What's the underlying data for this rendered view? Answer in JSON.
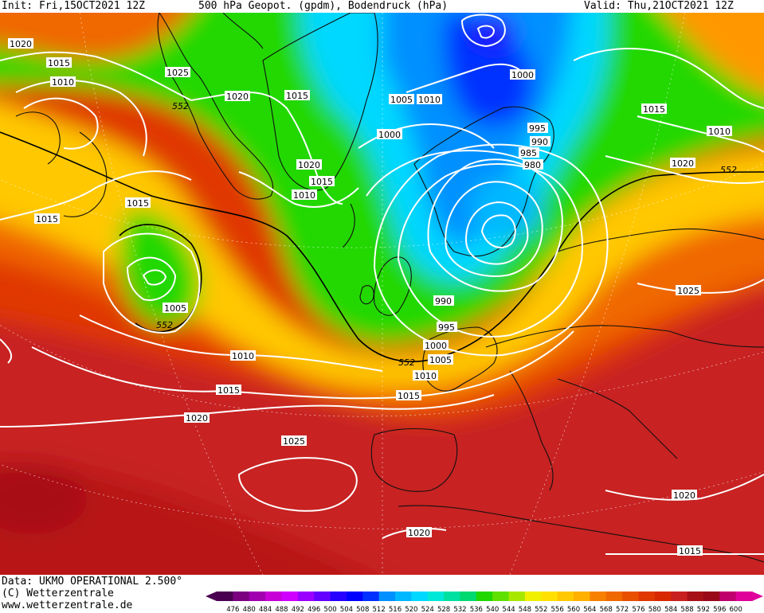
{
  "header": {
    "init": "Init: Fri,15OCT2021 12Z",
    "title": "500 hPa Geopot. (gpdm), Bodendruck (hPa)",
    "valid": "Valid: Thu,21OCT2021 12Z"
  },
  "footer": {
    "source": "Data: UKMO OPERATIONAL 2.500°",
    "copyright": "(C) Wetterzentrale",
    "url": "www.wetterzentrale.de"
  },
  "colors": {
    "geopot": [
      "#4a0050",
      "#7a0080",
      "#a000b0",
      "#c800d8",
      "#e800f0",
      "#d000ff",
      "#9a00ff",
      "#6400ff",
      "#2800ff",
      "#0000ff",
      "#0030ff",
      "#0060ff",
      "#0090ff",
      "#00b8ff",
      "#00d8ff",
      "#00e8d8",
      "#00e0a0",
      "#00d870",
      "#00d040",
      "#20d800",
      "#60e000",
      "#a8e800",
      "#f0f000",
      "#ffe000",
      "#ffc800",
      "#ffb000",
      "#ff9800",
      "#f88000",
      "#f06800",
      "#e85000",
      "#e03800",
      "#d82800",
      "#c82020",
      "#b81818",
      "#a81018",
      "#980818",
      "#c0006c",
      "#e0009c"
    ]
  },
  "map": {
    "contour_labels": [
      "1020",
      "1015",
      "1010",
      "1025",
      "552",
      "1020",
      "1015",
      "1005",
      "1010",
      "1000",
      "1000",
      "995",
      "990",
      "985",
      "980",
      "1015",
      "1010",
      "1020",
      "552",
      "1020",
      "1015",
      "1010",
      "1015",
      "1015",
      "1005",
      "552",
      "1010",
      "1015",
      "1020",
      "990",
      "995",
      "1000",
      "1005",
      "1010",
      "1015",
      "552",
      "1025",
      "1025",
      "1020",
      "1020",
      "1015"
    ]
  },
  "legend": {
    "values": [
      "476",
      "480",
      "484",
      "488",
      "492",
      "496",
      "500",
      "504",
      "508",
      "512",
      "516",
      "520",
      "524",
      "528",
      "532",
      "536",
      "540",
      "544",
      "548",
      "552",
      "556",
      "560",
      "564",
      "568",
      "572",
      "576",
      "580",
      "584",
      "588",
      "592",
      "596",
      "600"
    ]
  }
}
